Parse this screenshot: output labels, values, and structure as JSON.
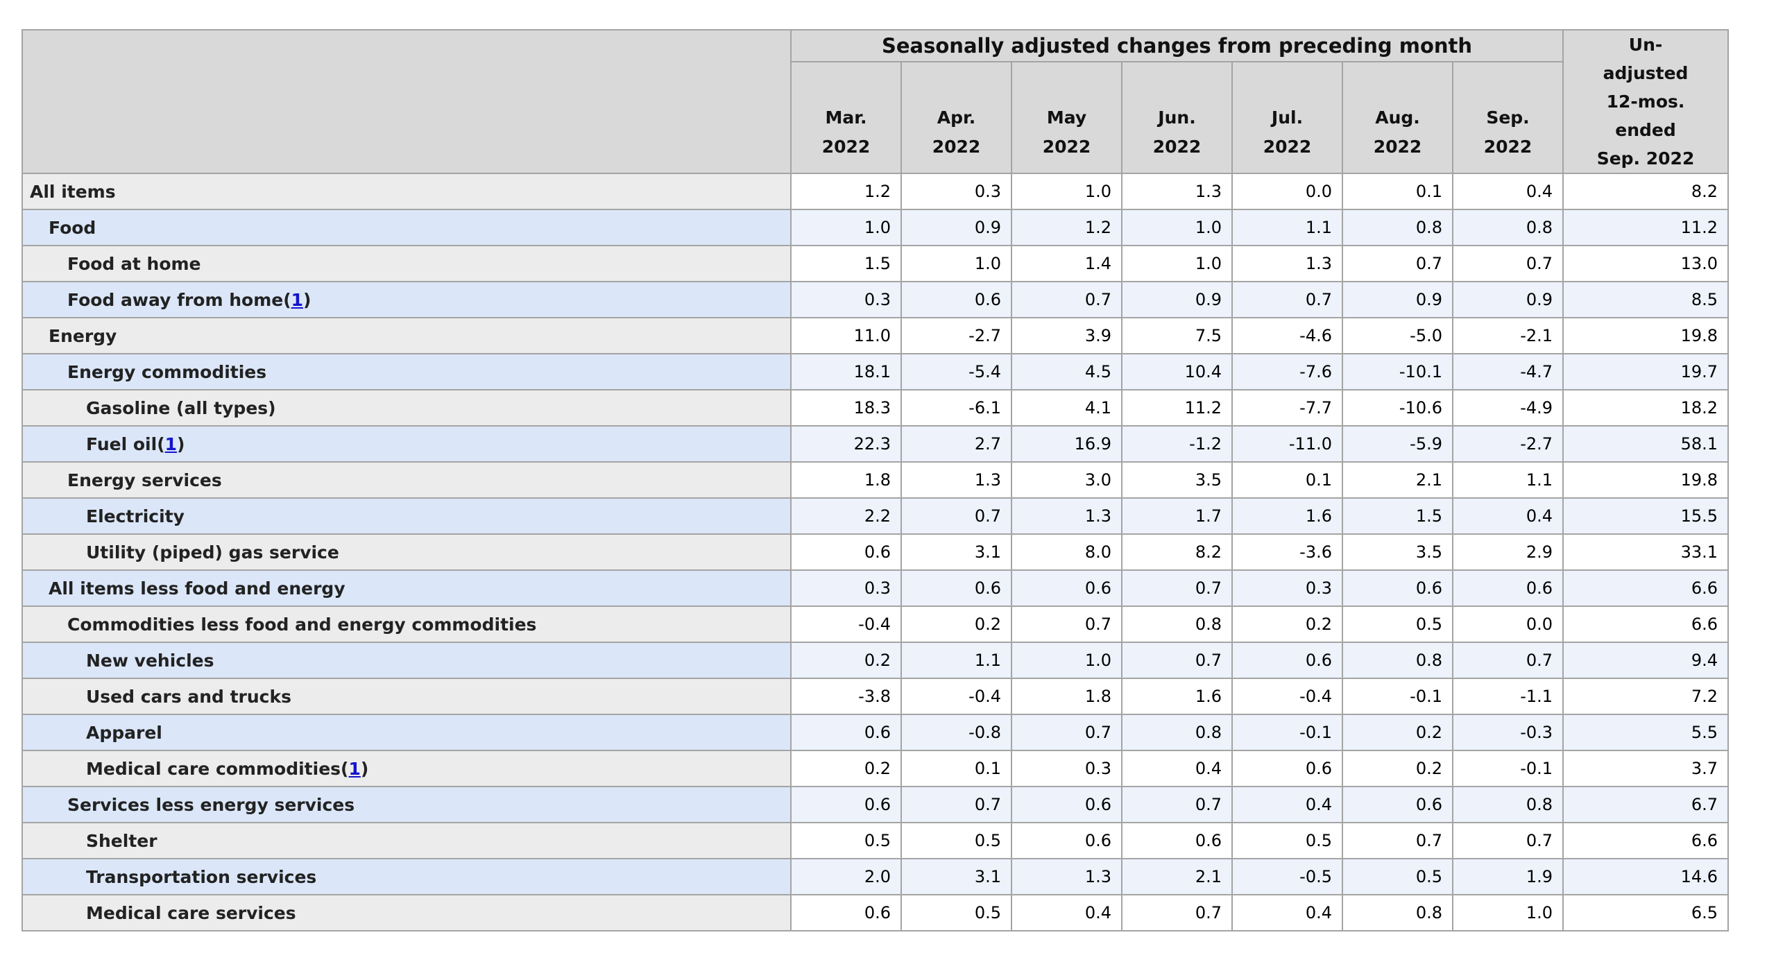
{
  "colors": {
    "header_bg": "#d9d9d9",
    "row_label_gray": "#ececec",
    "row_label_blue": "#dbe7f8",
    "row_data_white": "#ffffff",
    "row_data_blue": "#edf2fb",
    "border_outer": "#8d8d8d",
    "border_inner": "#a4a4a4",
    "link_blue": "#1414cc"
  },
  "table": {
    "group_header": "Seasonally adjusted changes from preceding month",
    "month_headers": [
      {
        "month": "Mar.",
        "year": "2022"
      },
      {
        "month": "Apr.",
        "year": "2022"
      },
      {
        "month": "May",
        "year": "2022"
      },
      {
        "month": "Jun.",
        "year": "2022"
      },
      {
        "month": "Jul.",
        "year": "2022"
      },
      {
        "month": "Aug.",
        "year": "2022"
      },
      {
        "month": "Sep.",
        "year": "2022"
      }
    ],
    "unadjusted_header_lines": [
      "Un-",
      "adjusted",
      "12-mos.",
      "ended",
      "Sep. 2022"
    ],
    "footnote": {
      "open": "(",
      "link_text": "1",
      "close": ")"
    }
  },
  "chart_data": {
    "type": "table",
    "title": "Seasonally adjusted changes from preceding month",
    "columns": [
      "Mar. 2022",
      "Apr. 2022",
      "May 2022",
      "Jun. 2022",
      "Jul. 2022",
      "Aug. 2022",
      "Sep. 2022",
      "Un-adjusted 12-mos. ended Sep. 2022"
    ],
    "rows": [
      {
        "label": "All items",
        "indent": 0,
        "footnote": false,
        "values": [
          "1.2",
          "0.3",
          "1.0",
          "1.3",
          "0.0",
          "0.1",
          "0.4",
          "8.2"
        ]
      },
      {
        "label": "Food",
        "indent": 1,
        "footnote": false,
        "values": [
          "1.0",
          "0.9",
          "1.2",
          "1.0",
          "1.1",
          "0.8",
          "0.8",
          "11.2"
        ]
      },
      {
        "label": "Food at home",
        "indent": 2,
        "footnote": false,
        "values": [
          "1.5",
          "1.0",
          "1.4",
          "1.0",
          "1.3",
          "0.7",
          "0.7",
          "13.0"
        ]
      },
      {
        "label": "Food away from home",
        "indent": 2,
        "footnote": true,
        "values": [
          "0.3",
          "0.6",
          "0.7",
          "0.9",
          "0.7",
          "0.9",
          "0.9",
          "8.5"
        ]
      },
      {
        "label": "Energy",
        "indent": 1,
        "footnote": false,
        "values": [
          "11.0",
          "-2.7",
          "3.9",
          "7.5",
          "-4.6",
          "-5.0",
          "-2.1",
          "19.8"
        ]
      },
      {
        "label": "Energy commodities",
        "indent": 2,
        "footnote": false,
        "values": [
          "18.1",
          "-5.4",
          "4.5",
          "10.4",
          "-7.6",
          "-10.1",
          "-4.7",
          "19.7"
        ]
      },
      {
        "label": "Gasoline (all types)",
        "indent": 3,
        "footnote": false,
        "values": [
          "18.3",
          "-6.1",
          "4.1",
          "11.2",
          "-7.7",
          "-10.6",
          "-4.9",
          "18.2"
        ]
      },
      {
        "label": "Fuel oil",
        "indent": 3,
        "footnote": true,
        "values": [
          "22.3",
          "2.7",
          "16.9",
          "-1.2",
          "-11.0",
          "-5.9",
          "-2.7",
          "58.1"
        ]
      },
      {
        "label": "Energy services",
        "indent": 2,
        "footnote": false,
        "values": [
          "1.8",
          "1.3",
          "3.0",
          "3.5",
          "0.1",
          "2.1",
          "1.1",
          "19.8"
        ]
      },
      {
        "label": "Electricity",
        "indent": 3,
        "footnote": false,
        "values": [
          "2.2",
          "0.7",
          "1.3",
          "1.7",
          "1.6",
          "1.5",
          "0.4",
          "15.5"
        ]
      },
      {
        "label": "Utility (piped) gas service",
        "indent": 3,
        "footnote": false,
        "values": [
          "0.6",
          "3.1",
          "8.0",
          "8.2",
          "-3.6",
          "3.5",
          "2.9",
          "33.1"
        ]
      },
      {
        "label": "All items less food and energy",
        "indent": 1,
        "footnote": false,
        "values": [
          "0.3",
          "0.6",
          "0.6",
          "0.7",
          "0.3",
          "0.6",
          "0.6",
          "6.6"
        ]
      },
      {
        "label": "Commodities less food and energy commodities",
        "indent": 2,
        "footnote": false,
        "values": [
          "-0.4",
          "0.2",
          "0.7",
          "0.8",
          "0.2",
          "0.5",
          "0.0",
          "6.6"
        ]
      },
      {
        "label": "New vehicles",
        "indent": 3,
        "footnote": false,
        "values": [
          "0.2",
          "1.1",
          "1.0",
          "0.7",
          "0.6",
          "0.8",
          "0.7",
          "9.4"
        ]
      },
      {
        "label": "Used cars and trucks",
        "indent": 3,
        "footnote": false,
        "values": [
          "-3.8",
          "-0.4",
          "1.8",
          "1.6",
          "-0.4",
          "-0.1",
          "-1.1",
          "7.2"
        ]
      },
      {
        "label": "Apparel",
        "indent": 3,
        "footnote": false,
        "values": [
          "0.6",
          "-0.8",
          "0.7",
          "0.8",
          "-0.1",
          "0.2",
          "-0.3",
          "5.5"
        ]
      },
      {
        "label": "Medical care commodities",
        "indent": 3,
        "footnote": true,
        "values": [
          "0.2",
          "0.1",
          "0.3",
          "0.4",
          "0.6",
          "0.2",
          "-0.1",
          "3.7"
        ]
      },
      {
        "label": "Services less energy services",
        "indent": 2,
        "footnote": false,
        "values": [
          "0.6",
          "0.7",
          "0.6",
          "0.7",
          "0.4",
          "0.6",
          "0.8",
          "6.7"
        ]
      },
      {
        "label": "Shelter",
        "indent": 3,
        "footnote": false,
        "values": [
          "0.5",
          "0.5",
          "0.6",
          "0.6",
          "0.5",
          "0.7",
          "0.7",
          "6.6"
        ]
      },
      {
        "label": "Transportation services",
        "indent": 3,
        "footnote": false,
        "values": [
          "2.0",
          "3.1",
          "1.3",
          "2.1",
          "-0.5",
          "0.5",
          "1.9",
          "14.6"
        ]
      },
      {
        "label": "Medical care services",
        "indent": 3,
        "footnote": false,
        "values": [
          "0.6",
          "0.5",
          "0.4",
          "0.7",
          "0.4",
          "0.8",
          "1.0",
          "6.5"
        ]
      }
    ]
  }
}
